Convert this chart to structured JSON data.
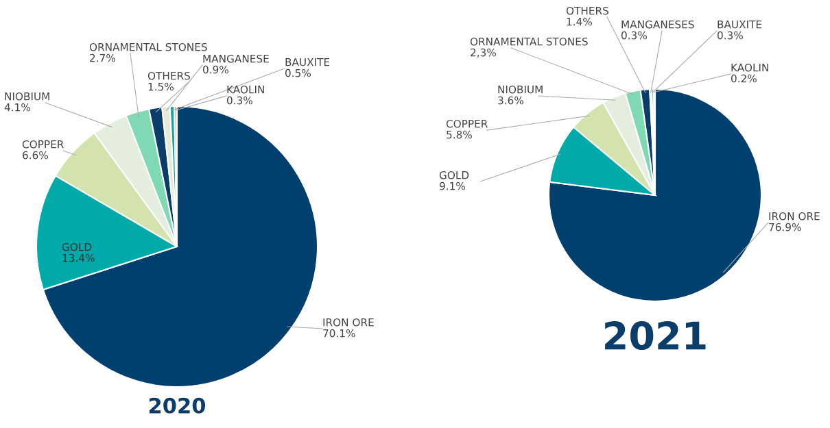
{
  "chart_data": [
    {
      "type": "pie",
      "title": "2020",
      "categories": [
        "IRON ORE",
        "GOLD",
        "COPPER",
        "NIOBIUM",
        "ORNAMENTAL STONES",
        "OTHERS",
        "MANGANESE",
        "BAUXITE",
        "KAOLIN"
      ],
      "values": [
        70.1,
        13.4,
        6.6,
        4.1,
        2.7,
        1.5,
        0.9,
        0.5,
        0.3
      ],
      "value_labels": [
        "70.1%",
        "13.4%",
        "6.6%",
        "4.1%",
        "2.7%",
        "1.5%",
        "0.9%",
        "0.5%",
        "0.3%"
      ],
      "colors": [
        "#003f6e",
        "#00aaa8",
        "#d2e3ae",
        "#e3eedf",
        "#7fd9b2",
        "#0a3d6a",
        "#e6ead6",
        "#14a2a2",
        "#d9b3a8"
      ]
    },
    {
      "type": "pie",
      "title": "2021",
      "categories": [
        "IRON ORE",
        "GOLD",
        "COPPER",
        "NIOBIUM",
        "ORNAMENTAL STONES",
        "OTHERS",
        "MANGANESES",
        "BAUXITE",
        "KAOLIN"
      ],
      "values": [
        76.9,
        9.1,
        5.8,
        3.6,
        2.3,
        1.4,
        0.3,
        0.3,
        0.2
      ],
      "value_labels": [
        "76.9%",
        "9.1%",
        "5.8%",
        "3.6%",
        "2,3%",
        "1.4%",
        "0.3%",
        "0.3%",
        "0.2%"
      ],
      "colors": [
        "#003f6e",
        "#00aaa8",
        "#d2e3ae",
        "#e3eedf",
        "#7fd9b2",
        "#0a3d6a",
        "#e6ead6",
        "#14a2a2",
        "#d9b3a8"
      ]
    }
  ]
}
